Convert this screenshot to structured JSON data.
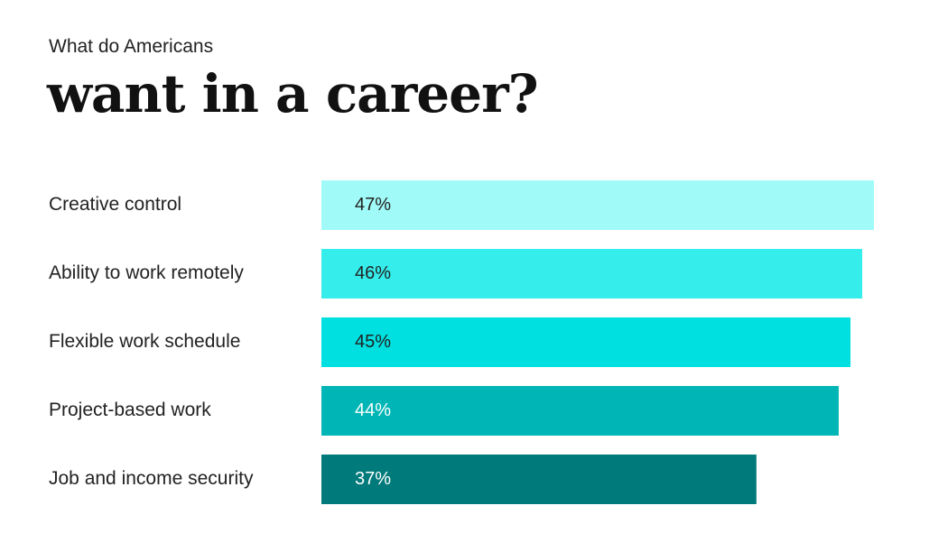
{
  "header": {
    "subtitle": "What do Americans",
    "title": "want in a career?"
  },
  "chart_data": {
    "type": "bar",
    "orientation": "horizontal",
    "categories": [
      "Creative control",
      "Ability to work remotely",
      "Flexible work schedule",
      "Project-based work",
      "Job and income security"
    ],
    "values": [
      47,
      46,
      45,
      44,
      37
    ],
    "value_labels": [
      "47%",
      "46%",
      "45%",
      "44%",
      "37%"
    ],
    "bar_colors": [
      "#a0fbf8",
      "#35eeec",
      "#00e0e0",
      "#00b5b5",
      "#007a7a"
    ],
    "label_colors": [
      "#222222",
      "#222222",
      "#222222",
      "#ffffff",
      "#ffffff"
    ],
    "title": "want in a career?",
    "subtitle": "What do Americans",
    "xlabel": "",
    "ylabel": "",
    "xlim": [
      0,
      47
    ],
    "grid": false,
    "legend": "none"
  }
}
